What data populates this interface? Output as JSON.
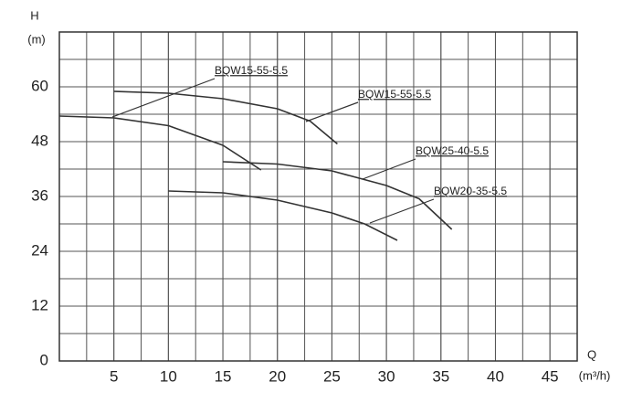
{
  "chart_data": {
    "type": "line",
    "y_label": "H",
    "y_unit": "(m)",
    "x_label": "Q",
    "x_unit": "(m³/h)",
    "xlim": [
      0,
      47.5
    ],
    "xticks": [
      5,
      10,
      15,
      20,
      25,
      30,
      35,
      40,
      45
    ],
    "ylim": [
      0,
      72
    ],
    "yticks": [
      0,
      12,
      24,
      36,
      48,
      60
    ],
    "grid": true,
    "color": "#333333",
    "series": [
      {
        "name": "BQW15-55-5.5",
        "color": "#333333",
        "x": [
          5,
          10,
          15,
          20,
          23,
          25.5
        ],
        "values": [
          59,
          58.6,
          57.4,
          55.2,
          52.5,
          47.5
        ]
      },
      {
        "name": "BQW15-55-5.5",
        "color": "#333333",
        "x": [
          0,
          5,
          10,
          15,
          18.5
        ],
        "values": [
          53.6,
          53.2,
          51.5,
          47.2,
          41.8
        ]
      },
      {
        "name": "BQW25-40-5.5",
        "color": "#333333",
        "x": [
          15,
          20,
          25,
          30,
          33,
          36
        ],
        "values": [
          43.6,
          43.1,
          41.6,
          38.4,
          35.5,
          28.8
        ]
      },
      {
        "name": "BQW20-35-5.5",
        "color": "#333333",
        "x": [
          10,
          15,
          20,
          25,
          28,
          31
        ],
        "values": [
          37.2,
          36.8,
          35.2,
          32.4,
          30,
          26.4
        ]
      }
    ]
  }
}
